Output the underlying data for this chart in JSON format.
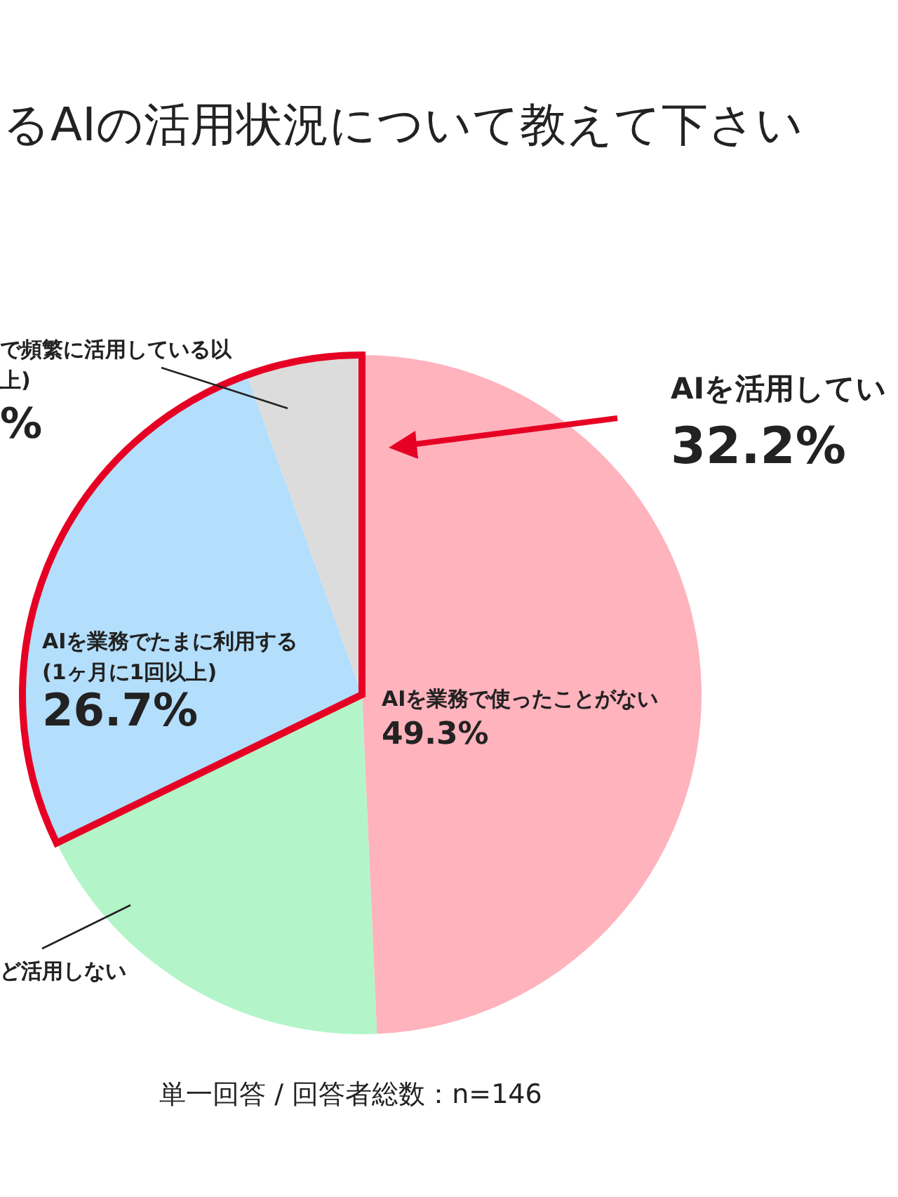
{
  "chart_data": {
    "type": "pie",
    "title": "るAIの活用状況について教えて下さい",
    "categories": [
      "AIを業務で使ったことがない",
      "ど活用しない",
      "AIを業務でたまに利用する\n(1ヶ月に1回以上)",
      "で頻繁に活用している以上)"
    ],
    "values": [
      49.3,
      18.5,
      26.7,
      5.5
    ],
    "colors": [
      "#ffb3bd",
      "#b3f5c8",
      "#b3defc",
      "#dcdcdc"
    ],
    "value_labels": [
      "49.3%",
      null,
      "26.7%",
      "%"
    ],
    "annotations": [
      "AIを活用してい",
      "32.2%",
      "単一回答 / 回答者総数：n=146"
    ]
  }
}
